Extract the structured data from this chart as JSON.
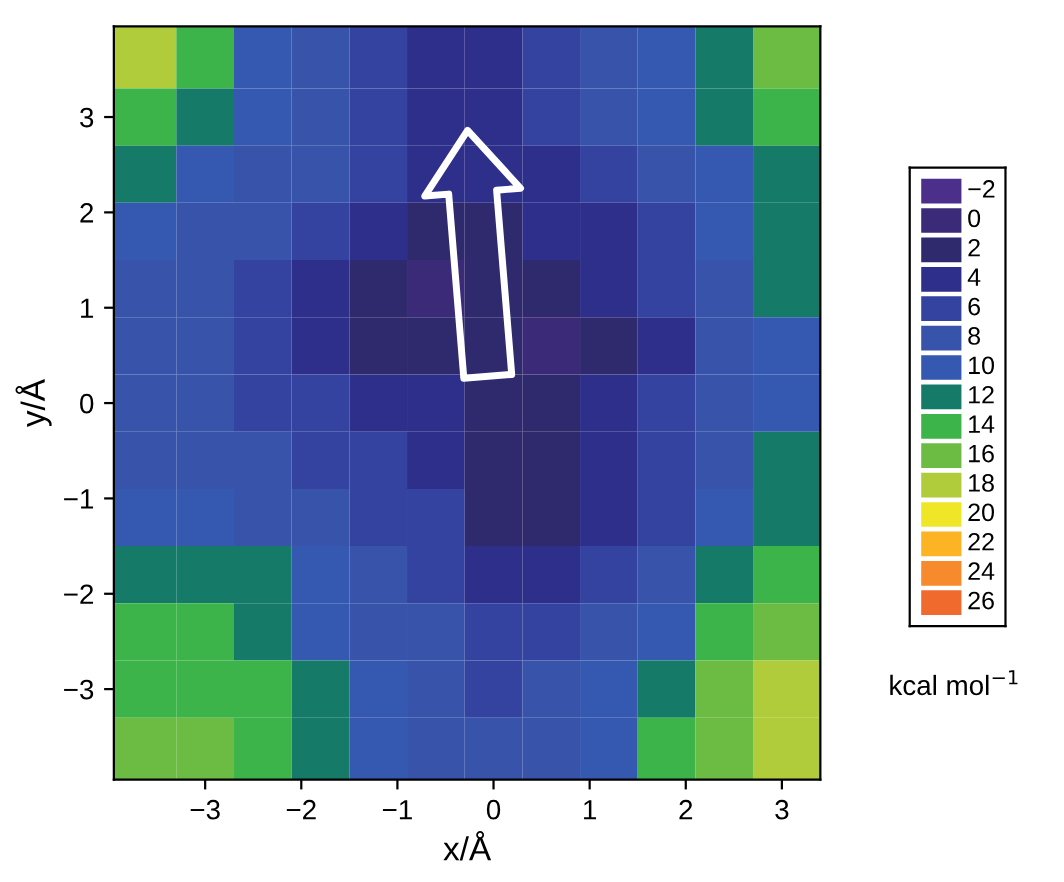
{
  "chart_data": {
    "type": "heatmap",
    "xlabel": "x/Å",
    "ylabel": "y/Å",
    "clabel": "kcal mol$^{−1}$",
    "x": [
      -3.6,
      -3.0,
      -2.4,
      -1.8,
      -1.2,
      -0.6,
      0,
      0.6,
      1.2,
      1.8,
      2.4,
      3.0
    ],
    "y": [
      3.6,
      3.0,
      2.4,
      1.8,
      1.2,
      0.6,
      0,
      -0.6,
      -1.2,
      -1.8,
      -2.4,
      -3.0,
      -3.6
    ],
    "xlim": [
      -3.95,
      3.4
    ],
    "ylim": [
      -3.95,
      3.95
    ],
    "xticks": [
      {
        "value": -3,
        "label": "−3"
      },
      {
        "value": -2,
        "label": "−2"
      },
      {
        "value": -1,
        "label": "−1"
      },
      0,
      1,
      2,
      3
    ],
    "yticks": [
      {
        "value": -3,
        "label": "−3"
      },
      {
        "value": -2,
        "label": "−2"
      },
      {
        "value": -1,
        "label": "−1"
      },
      0,
      1,
      2,
      3
    ],
    "cells": [
      [
        18,
        14,
        10,
        8,
        6,
        4,
        4,
        6,
        8,
        10,
        12,
        16
      ],
      [
        14,
        12,
        10,
        8,
        6,
        4,
        4,
        6,
        8,
        10,
        12,
        14
      ],
      [
        12,
        10,
        8,
        8,
        6,
        4,
        4,
        4,
        6,
        8,
        10,
        12
      ],
      [
        10,
        8,
        8,
        6,
        4,
        2,
        2,
        4,
        4,
        6,
        10,
        12
      ],
      [
        8,
        8,
        6,
        4,
        2,
        0,
        2,
        2,
        4,
        6,
        8,
        12
      ],
      [
        8,
        8,
        6,
        4,
        2,
        2,
        2,
        0,
        2,
        4,
        8,
        10
      ],
      [
        8,
        8,
        6,
        6,
        4,
        4,
        2,
        2,
        4,
        6,
        8,
        10
      ],
      [
        8,
        8,
        8,
        6,
        6,
        4,
        2,
        2,
        4,
        6,
        8,
        12
      ],
      [
        10,
        10,
        8,
        8,
        6,
        6,
        2,
        2,
        4,
        6,
        10,
        12
      ],
      [
        12,
        12,
        12,
        10,
        8,
        6,
        4,
        4,
        6,
        8,
        12,
        14
      ],
      [
        14,
        14,
        12,
        10,
        8,
        8,
        6,
        6,
        8,
        10,
        14,
        16
      ],
      [
        14,
        14,
        14,
        12,
        10,
        8,
        6,
        8,
        10,
        12,
        16,
        18
      ],
      [
        16,
        16,
        14,
        12,
        10,
        8,
        8,
        8,
        10,
        14,
        16,
        18
      ]
    ],
    "cticks": [
      {
        "value": -2,
        "label": "−2"
      },
      0,
      2,
      4,
      6,
      8,
      10,
      12,
      14,
      16,
      18,
      20,
      22,
      24,
      26
    ],
    "colors": [
      "#4b2f8a",
      "#3a2a78",
      "#2f2a6e",
      "#2e2f8a",
      "#3442a0",
      "#3753aa",
      "#3558b0",
      "#157a68",
      "#3cb44a",
      "#6cbc44",
      "#b0cc3a",
      "#f0e628",
      "#fcb424",
      "#f68a2c",
      "#ef6a2c"
    ]
  }
}
